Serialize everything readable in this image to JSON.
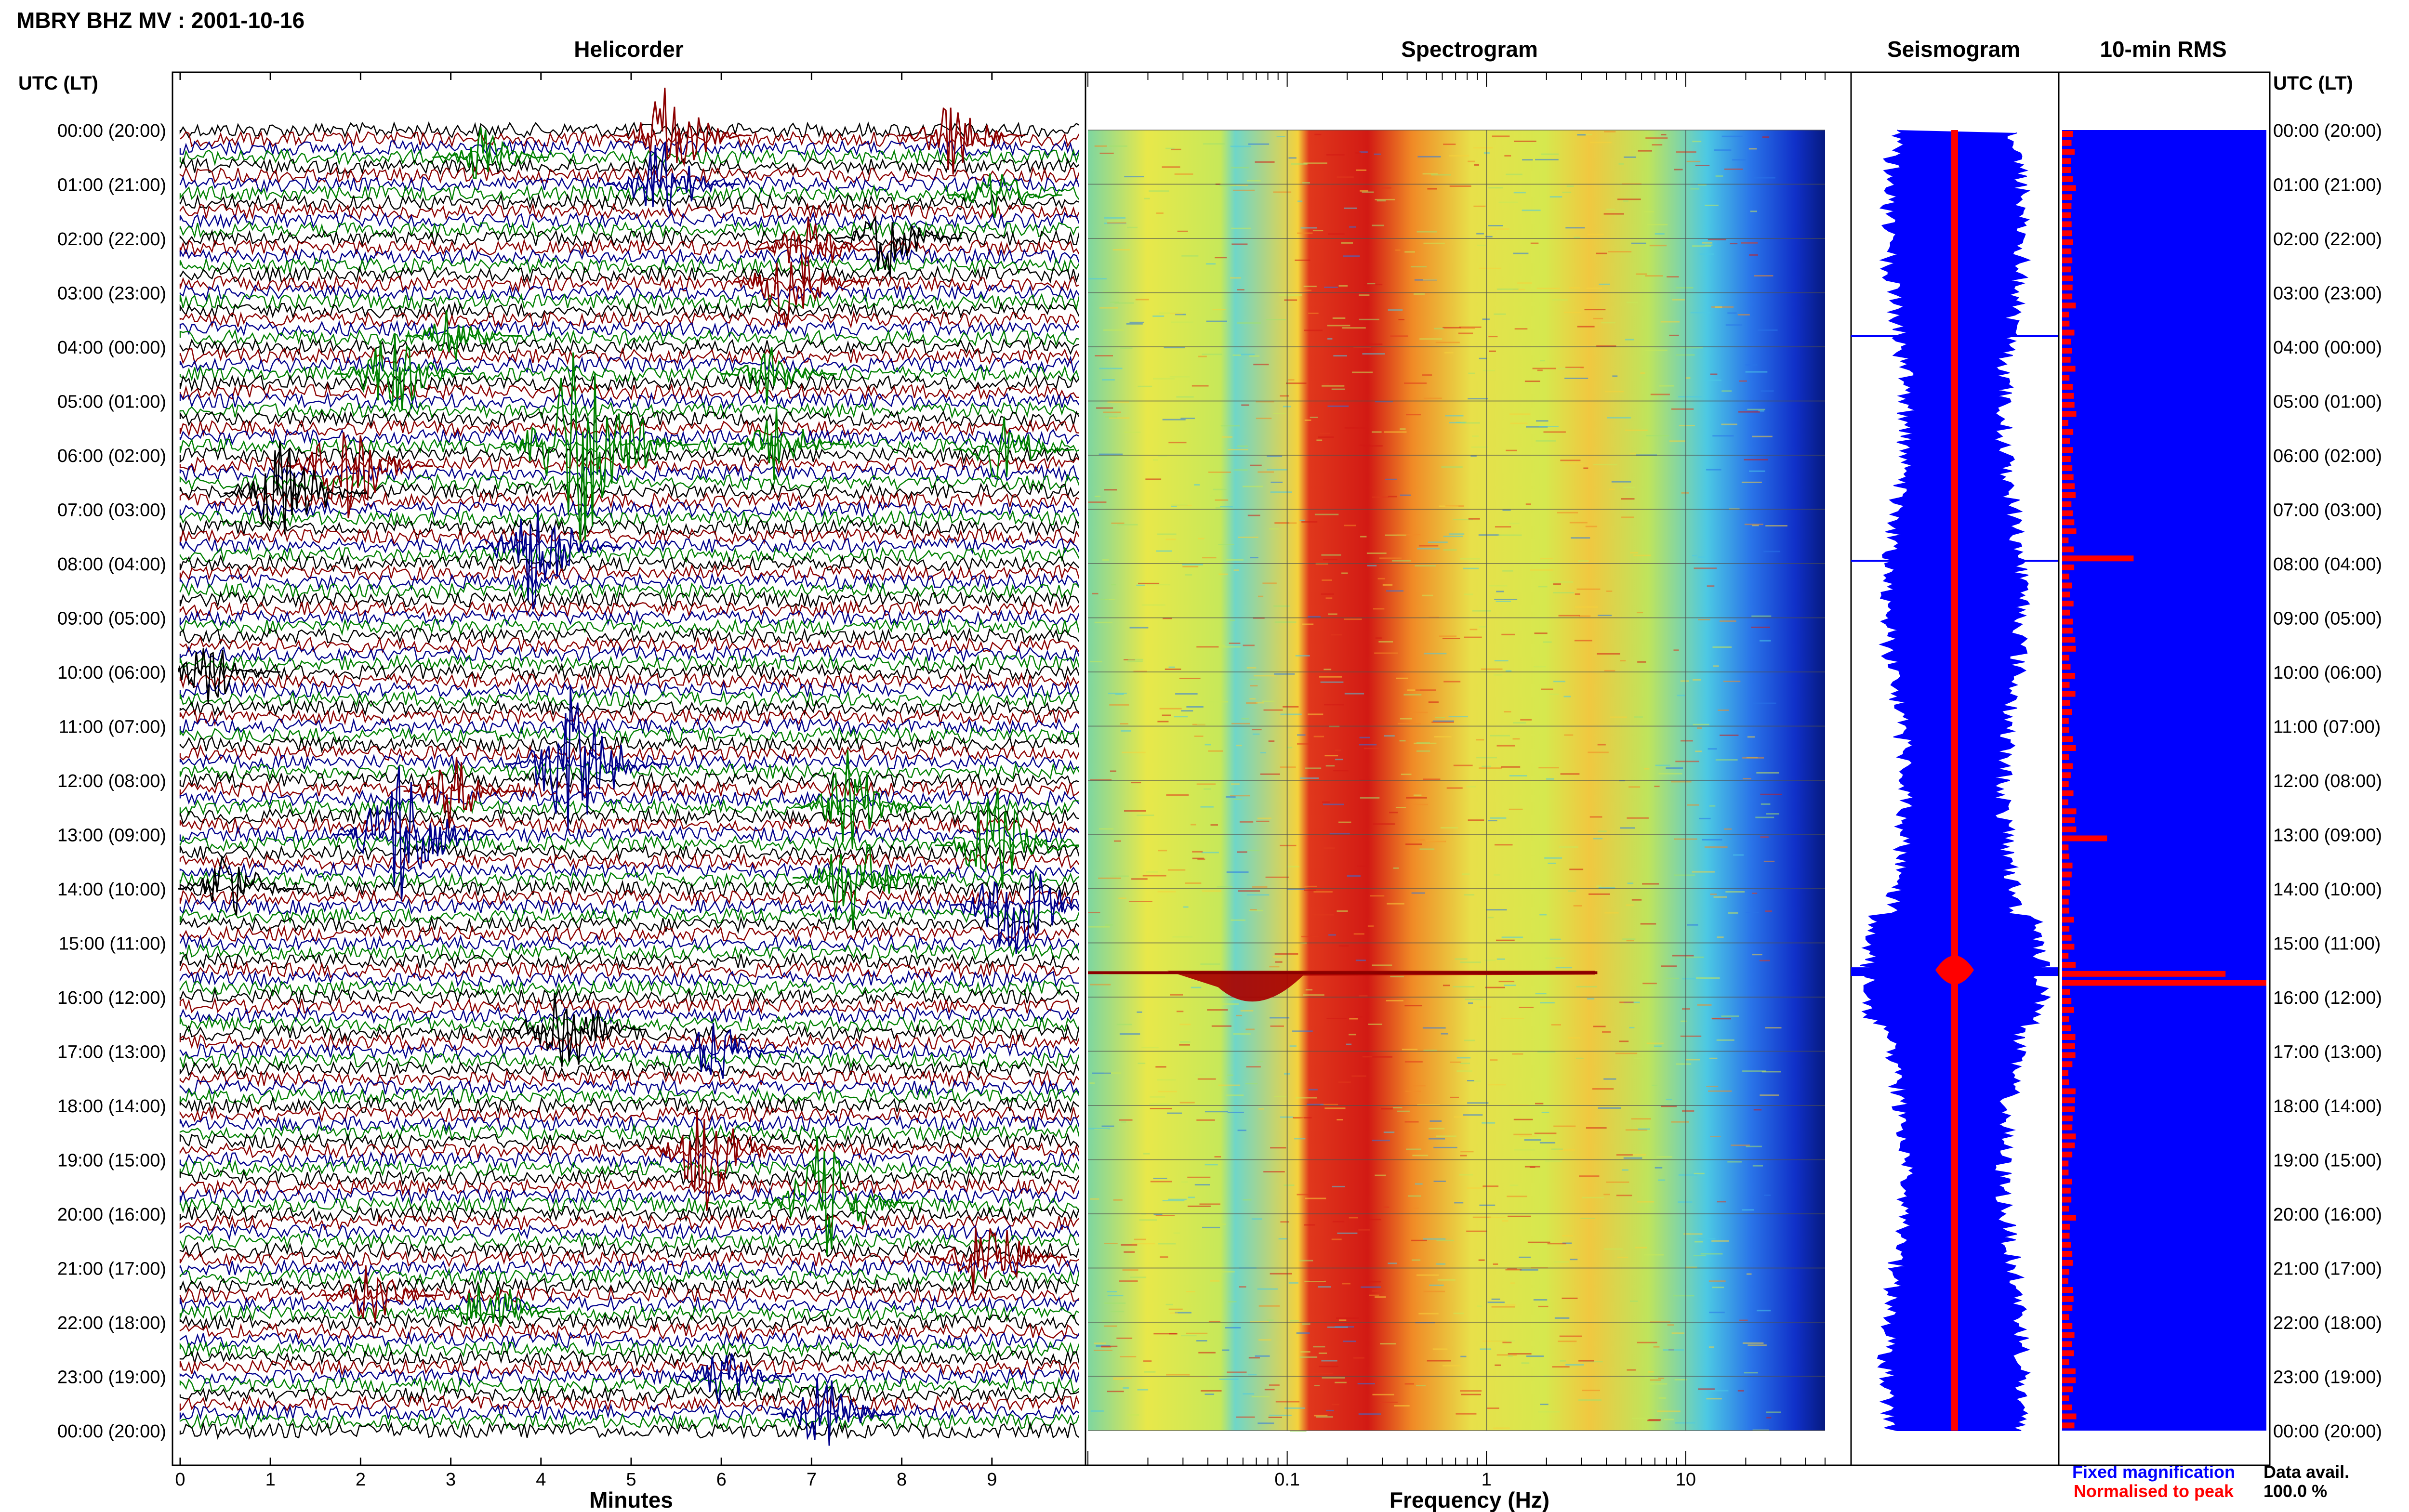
{
  "title": "MBRY BHZ MV : 2001-10-16",
  "colors": {
    "black": "#000000",
    "red": "#8b0000",
    "green": "#008000",
    "blue": "#00008b",
    "rms_blue": "#0000ff",
    "rms_red": "#ff0000"
  },
  "chart_data": {
    "type": "composite",
    "time_axis": {
      "label": "UTC (LT)",
      "ticks": [
        "00:00 (20:00)",
        "01:00 (21:00)",
        "02:00 (22:00)",
        "03:00 (23:00)",
        "04:00 (00:00)",
        "05:00 (01:00)",
        "06:00 (02:00)",
        "07:00 (03:00)",
        "08:00 (04:00)",
        "09:00 (05:00)",
        "10:00 (06:00)",
        "11:00 (07:00)",
        "12:00 (08:00)",
        "13:00 (09:00)",
        "14:00 (10:00)",
        "15:00 (11:00)",
        "16:00 (12:00)",
        "17:00 (13:00)",
        "18:00 (14:00)",
        "19:00 (15:00)",
        "20:00 (16:00)",
        "21:00 (17:00)",
        "22:00 (18:00)",
        "23:00 (19:00)",
        "00:00 (20:00)"
      ]
    },
    "helicorder": {
      "title": "Helicorder",
      "xlabel": "Minutes",
      "xticks": [
        "0",
        "1",
        "2",
        "3",
        "4",
        "5",
        "6",
        "7",
        "8",
        "9"
      ],
      "xlim": [
        0,
        10
      ],
      "trace_minutes": 10,
      "color_cycle": [
        "black",
        "red",
        "blue",
        "green"
      ],
      "events": [
        {
          "hour": 0.1,
          "minute": 5.4,
          "amp": 1.0
        },
        {
          "hour": 0.1,
          "minute": 8.5,
          "amp": 0.8
        },
        {
          "hour": 0.5,
          "minute": 3.3,
          "amp": 0.6
        },
        {
          "hour": 1.0,
          "minute": 5.3,
          "amp": 0.9
        },
        {
          "hour": 1.2,
          "minute": 9.0,
          "amp": 0.6
        },
        {
          "hour": 2.0,
          "minute": 7.8,
          "amp": 0.8
        },
        {
          "hour": 2.2,
          "minute": 6.9,
          "amp": 0.7
        },
        {
          "hour": 2.8,
          "minute": 6.7,
          "amp": 0.9
        },
        {
          "hour": 3.8,
          "minute": 3.0,
          "amp": 0.6
        },
        {
          "hour": 4.5,
          "minute": 2.3,
          "amp": 1.0
        },
        {
          "hour": 4.5,
          "minute": 6.5,
          "amp": 0.6
        },
        {
          "hour": 5.8,
          "minute": 4.4,
          "amp": 2.2
        },
        {
          "hour": 5.8,
          "minute": 6.6,
          "amp": 0.7
        },
        {
          "hour": 5.9,
          "minute": 9.1,
          "amp": 0.7
        },
        {
          "hour": 6.2,
          "minute": 1.8,
          "amp": 1.2
        },
        {
          "hour": 6.7,
          "minute": 1.1,
          "amp": 1.1
        },
        {
          "hour": 7.7,
          "minute": 3.9,
          "amp": 1.2
        },
        {
          "hour": 10.0,
          "minute": 0.3,
          "amp": 0.7
        },
        {
          "hour": 11.7,
          "minute": 4.3,
          "amp": 1.5
        },
        {
          "hour": 12.2,
          "minute": 3.0,
          "amp": 0.7
        },
        {
          "hour": 12.5,
          "minute": 7.4,
          "amp": 1.0
        },
        {
          "hour": 13.0,
          "minute": 2.4,
          "amp": 1.5
        },
        {
          "hour": 13.2,
          "minute": 9.0,
          "amp": 1.2
        },
        {
          "hour": 13.8,
          "minute": 7.4,
          "amp": 1.1
        },
        {
          "hour": 14.0,
          "minute": 0.5,
          "amp": 0.8
        },
        {
          "hour": 14.3,
          "minute": 9.2,
          "amp": 1.3
        },
        {
          "hour": 16.6,
          "minute": 4.2,
          "amp": 1.1
        },
        {
          "hour": 17.0,
          "minute": 5.9,
          "amp": 0.7
        },
        {
          "hour": 18.8,
          "minute": 5.8,
          "amp": 1.2
        },
        {
          "hour": 19.8,
          "minute": 7.1,
          "amp": 1.3
        },
        {
          "hour": 20.8,
          "minute": 8.9,
          "amp": 1.0
        },
        {
          "hour": 21.5,
          "minute": 2.1,
          "amp": 0.7
        },
        {
          "hour": 21.8,
          "minute": 3.4,
          "amp": 0.8
        },
        {
          "hour": 23.0,
          "minute": 6.0,
          "amp": 0.6
        },
        {
          "hour": 23.7,
          "minute": 7.1,
          "amp": 0.8
        }
      ]
    },
    "spectrogram": {
      "title": "Spectrogram",
      "xlabel": "Frequency (Hz)",
      "xscale": "log",
      "xlim": [
        0.01,
        50
      ],
      "xticks": [
        "0.1",
        "1",
        "10"
      ],
      "colormap": "jet",
      "dominant_band_hz": [
        0.2,
        0.5
      ],
      "secondary_band_hz": [
        2.5,
        4.5
      ],
      "high_freq_cutoff_hz": 40,
      "strong_event": {
        "hour": 15.55,
        "freq_range_hz": [
          0.03,
          0.25
        ]
      }
    },
    "seismogram": {
      "title": "Seismogram",
      "legend": [
        {
          "label": "Fixed magnification",
          "color": "blue"
        },
        {
          "label": "Normalised to peak",
          "color": "red"
        }
      ]
    },
    "rms": {
      "title": "10-min RMS",
      "red_bar_peaks": [
        {
          "hour": 7.9,
          "value": 0.35
        },
        {
          "hour": 15.5,
          "value": 0.8
        },
        {
          "hour": 15.6,
          "value": 1.0
        },
        {
          "hour": 13.0,
          "value": 0.22
        }
      ]
    },
    "data_availability": {
      "label": "Data avail.",
      "value": "100.0 %"
    }
  }
}
